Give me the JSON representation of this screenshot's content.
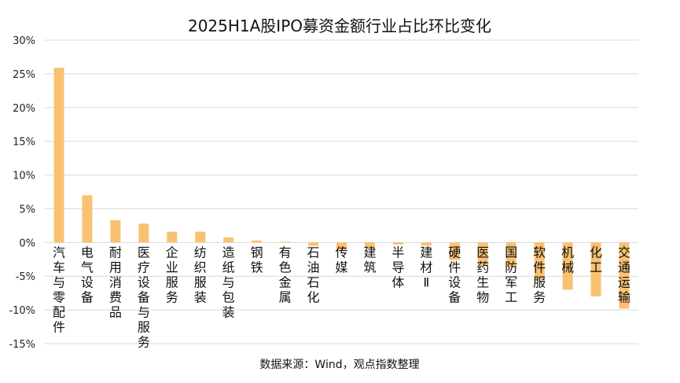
{
  "chart_data": {
    "type": "bar",
    "title": "2025H1A股IPO募资金额行业占比环比变化",
    "source": "数据来源：Wind，观点指数整理",
    "categories": [
      "汽车与零配件",
      "电气设备",
      "耐用消费品",
      "医疗设备与服务",
      "企业服务",
      "纺织服装",
      "造纸与包装",
      "钢铁",
      "有色金属",
      "石油石化",
      "传媒",
      "建筑",
      "半导体",
      "建材Ⅱ",
      "硬件设备",
      "医药生物",
      "国防军工",
      "软件服务",
      "机械",
      "化工",
      "交通运输"
    ],
    "values": [
      25.9,
      7.0,
      3.3,
      2.8,
      1.6,
      1.6,
      0.75,
      0.3,
      0.1,
      -0.5,
      -1.1,
      -0.8,
      -0.3,
      -0.45,
      -2.6,
      -3.4,
      -3.7,
      -5.5,
      -7.0,
      -8.0,
      -9.8
    ],
    "ylim": [
      -15,
      30
    ],
    "yticks": [
      "-15%",
      "-10%",
      "-5%",
      "0%",
      "5%",
      "10%",
      "15%",
      "20%",
      "25%",
      "30%"
    ],
    "ytick_values": [
      -15,
      -10,
      -5,
      0,
      5,
      10,
      15,
      20,
      25,
      30
    ],
    "grid": true,
    "bar_color": "#FAC172",
    "unit": "%"
  }
}
